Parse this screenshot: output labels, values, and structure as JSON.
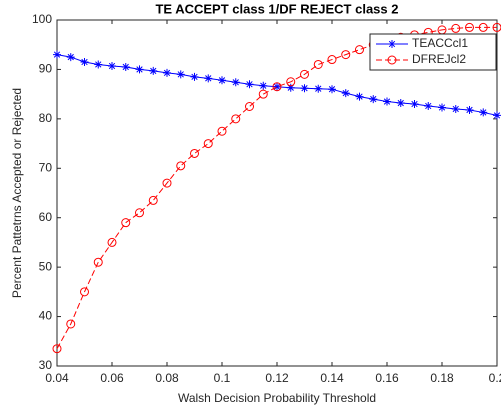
{
  "chart_data": {
    "type": "line",
    "title": "TE ACCEPT class 1/DF REJECT class 2",
    "x_label": "Walsh Decision Probability Threshold",
    "y_label": "Percent Pattetrns Accepted or Rejected",
    "x": [
      0.04,
      0.045,
      0.05,
      0.055,
      0.06,
      0.065,
      0.07,
      0.075,
      0.08,
      0.085,
      0.09,
      0.095,
      0.1,
      0.105,
      0.11,
      0.115,
      0.12,
      0.125,
      0.13,
      0.135,
      0.14,
      0.145,
      0.15,
      0.155,
      0.16,
      0.165,
      0.17,
      0.175,
      0.18,
      0.185,
      0.19,
      0.195,
      0.2
    ],
    "series": [
      {
        "name": "TEACCcl1",
        "color": "#0000ff",
        "marker": "asterisk",
        "line_style": "solid",
        "values": [
          93,
          92.5,
          91.5,
          91,
          90.7,
          90.5,
          90,
          89.7,
          89.3,
          89,
          88.5,
          88.2,
          87.8,
          87.4,
          87,
          86.7,
          86.5,
          86.3,
          86.2,
          86.1,
          86,
          85.2,
          84.5,
          84,
          83.5,
          83.2,
          83,
          82.6,
          82.3,
          82,
          81.8,
          81.3,
          80.7
        ]
      },
      {
        "name": "DFREJcl2",
        "color": "#ff0000",
        "marker": "circle",
        "line_style": "dashed",
        "values": [
          33.5,
          38.5,
          45,
          51,
          55,
          59,
          61,
          63.5,
          67,
          70.5,
          73,
          75,
          77.5,
          80,
          82.5,
          85,
          86.5,
          87.5,
          89,
          91,
          92,
          93,
          94,
          95,
          96,
          96.5,
          97,
          97.5,
          98,
          98.3,
          98.5,
          98.5,
          98.5
        ]
      }
    ],
    "xlim": [
      0.04,
      0.2
    ],
    "xticks": [
      0.04,
      0.06,
      0.08,
      0.1,
      0.12,
      0.14,
      0.16,
      0.18,
      0.2
    ],
    "ylim": [
      30,
      100
    ],
    "yticks": [
      30,
      40,
      50,
      60,
      70,
      80,
      90,
      100
    ],
    "grid": false,
    "legend": "northeast"
  }
}
